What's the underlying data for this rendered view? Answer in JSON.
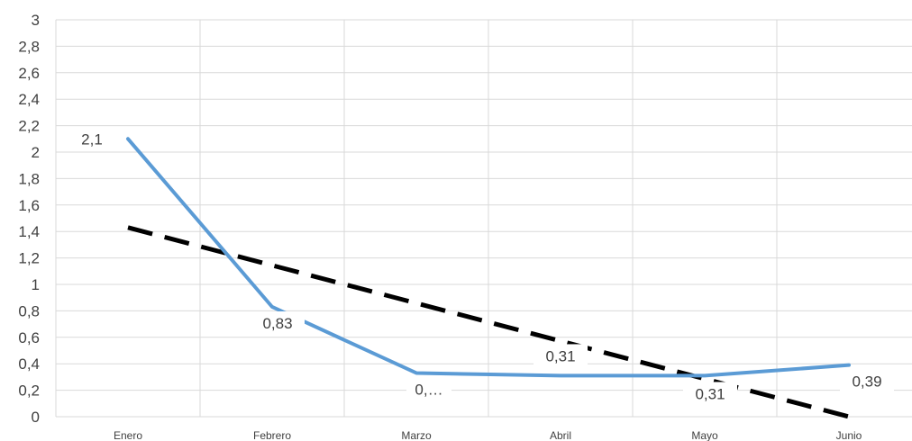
{
  "chart_data": {
    "type": "line",
    "categories": [
      "Enero",
      "Febrero",
      "Marzo",
      "Abril",
      "Mayo",
      "Junio"
    ],
    "series": [
      {
        "values": [
          2.1,
          0.83,
          0.33,
          0.31,
          0.31,
          0.39
        ],
        "data_labels": [
          "2,1",
          "0,83",
          "0,…",
          "0,31",
          "0,31",
          "0,39"
        ],
        "color": "#5B9BD5",
        "style": "solid"
      },
      {
        "type": "linear-trendline",
        "start_value": 1.43,
        "end_value": 0.0,
        "color": "#000000",
        "style": "dashed"
      }
    ],
    "y_ticks": [
      "0",
      "0,2",
      "0,4",
      "0,6",
      "0,8",
      "1",
      "1,2",
      "1,4",
      "1,6",
      "1,8",
      "2",
      "2,2",
      "2,4",
      "2,6",
      "2,8",
      "3"
    ],
    "ylim": [
      0,
      3
    ],
    "grid": true,
    "title": "",
    "xlabel": "",
    "ylabel": ""
  }
}
